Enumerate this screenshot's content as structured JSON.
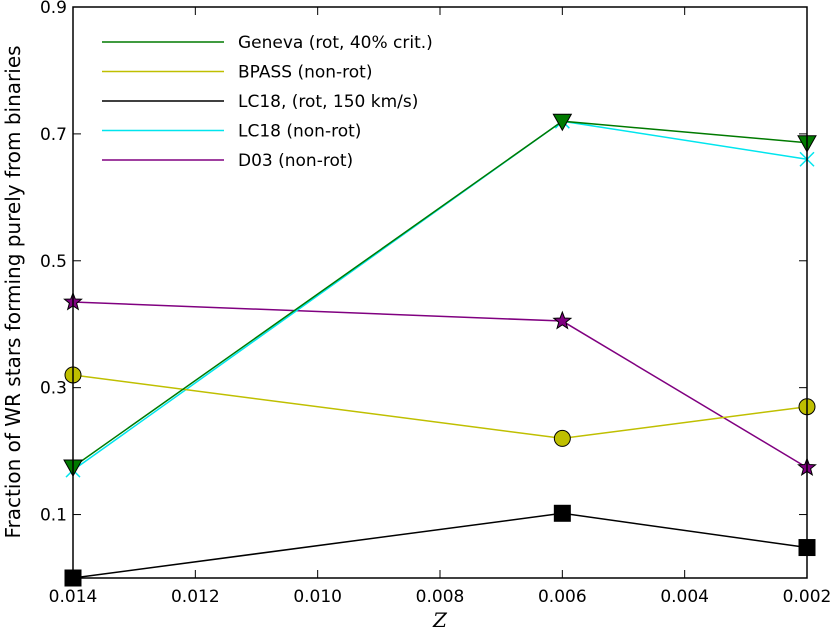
{
  "chart_data": {
    "type": "line",
    "title": "",
    "xlabel": "Z",
    "ylabel": "Fraction of WR stars forming purely from binaries",
    "x_reversed": true,
    "xlim": [
      0.014,
      0.002
    ],
    "ylim": [
      0.0,
      0.9
    ],
    "xticks": [
      0.014,
      0.012,
      0.01,
      0.008,
      0.006,
      0.004,
      0.002
    ],
    "xtick_labels": [
      "0.014",
      "0.012",
      "0.010",
      "0.008",
      "0.006",
      "0.004",
      "0.002"
    ],
    "yticks": [
      0.1,
      0.3,
      0.5,
      0.7,
      0.9
    ],
    "ytick_labels": [
      "0.1",
      "0.3",
      "0.5",
      "0.7",
      "0.9"
    ],
    "legend_position": "top-left",
    "series": [
      {
        "name": "Geneva (rot, 40% crit.)",
        "color": "#007a00",
        "marker": "triangle-down",
        "x": [
          0.014,
          0.006,
          0.002
        ],
        "values": [
          0.175,
          0.72,
          0.686
        ]
      },
      {
        "name": "BPASS (non-rot)",
        "color": "#bfbf00",
        "marker": "circle",
        "x": [
          0.014,
          0.006,
          0.002
        ],
        "values": [
          0.32,
          0.22,
          0.27
        ]
      },
      {
        "name": "LC18, (rot, 150 km/s)",
        "color": "#000000",
        "marker": "square",
        "x": [
          0.014,
          0.006,
          0.002
        ],
        "values": [
          0.0,
          0.102,
          0.048
        ]
      },
      {
        "name": "LC18 (non-rot)",
        "color": "#00e5ee",
        "marker": "x",
        "x": [
          0.014,
          0.006,
          0.002
        ],
        "values": [
          0.17,
          0.72,
          0.66
        ]
      },
      {
        "name": "D03 (non-rot)",
        "color": "#800080",
        "marker": "star",
        "x": [
          0.014,
          0.006,
          0.002
        ],
        "values": [
          0.435,
          0.405,
          0.174
        ]
      }
    ]
  }
}
